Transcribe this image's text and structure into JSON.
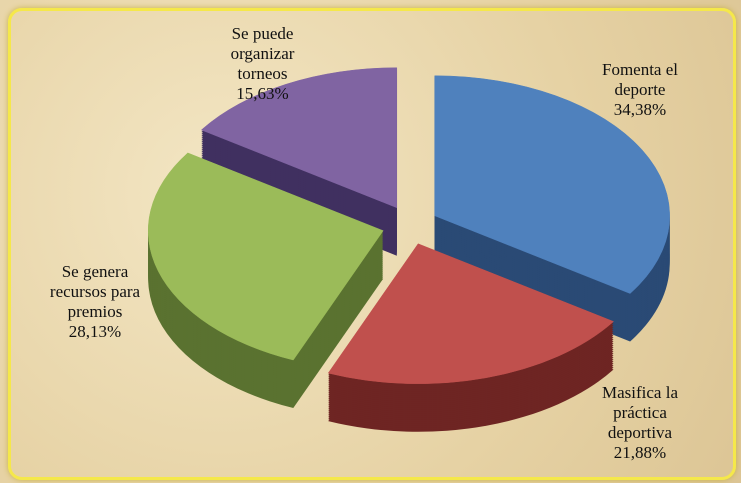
{
  "chart_data": {
    "type": "pie",
    "categories": [
      "Fomenta el deporte",
      "Masifica la práctica deportiva",
      "Se genera recursos para premios",
      "Se puede organizar torneos"
    ],
    "values": [
      34.38,
      21.88,
      28.13,
      15.63
    ],
    "value_labels": [
      "34,38%",
      "21,88%",
      "28,13%",
      "15,63%"
    ],
    "colors": [
      "#4f81bd",
      "#c0504d",
      "#9bbb59",
      "#8064a2"
    ],
    "side_colors": [
      "#2a4a75",
      "#6e2523",
      "#5a7230",
      "#403060"
    ]
  }
}
